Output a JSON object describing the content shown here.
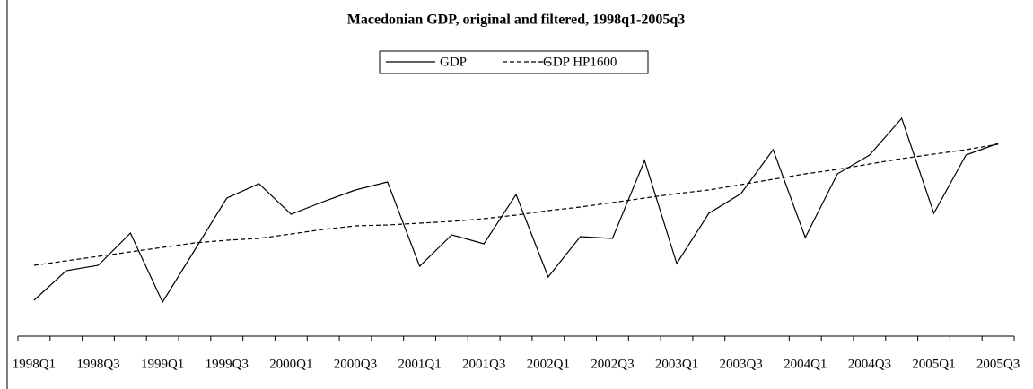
{
  "chart_data": {
    "type": "line",
    "title": "Macedonian GDP, original and filtered, 1998q1-2005q3",
    "categories": [
      "1998Q1",
      null,
      "1998Q3",
      null,
      "1999Q1",
      null,
      "1999Q3",
      null,
      "2000Q1",
      null,
      "2000Q3",
      null,
      "2001Q1",
      null,
      "2001Q3",
      null,
      "2002Q1",
      null,
      "2002Q3",
      null,
      "2003Q1",
      null,
      "2003Q3",
      null,
      "2004Q1",
      null,
      "2004Q3",
      null,
      "2005Q1",
      null,
      "2005Q3"
    ],
    "series": [
      {
        "name": "GDP",
        "color": "#000000",
        "dash": false,
        "values": [
          40,
          73,
          79,
          115,
          38,
          96,
          154,
          170,
          136,
          150,
          163,
          172,
          78,
          113,
          103,
          158,
          66,
          111,
          109,
          196,
          81,
          137,
          159,
          208,
          110,
          181,
          202,
          243,
          137,
          202,
          215
        ]
      },
      {
        "name": "GDP HP1600",
        "color": "#000000",
        "dash": true,
        "values": [
          79,
          84,
          89,
          94,
          99,
          104,
          107,
          109,
          114,
          119,
          123,
          124,
          126,
          128,
          131,
          135,
          140,
          144,
          149,
          154,
          159,
          163,
          169,
          175,
          181,
          186,
          192,
          198,
          203,
          208,
          214
        ]
      }
    ],
    "ylim": [
      0,
      260
    ],
    "legend": "top"
  }
}
